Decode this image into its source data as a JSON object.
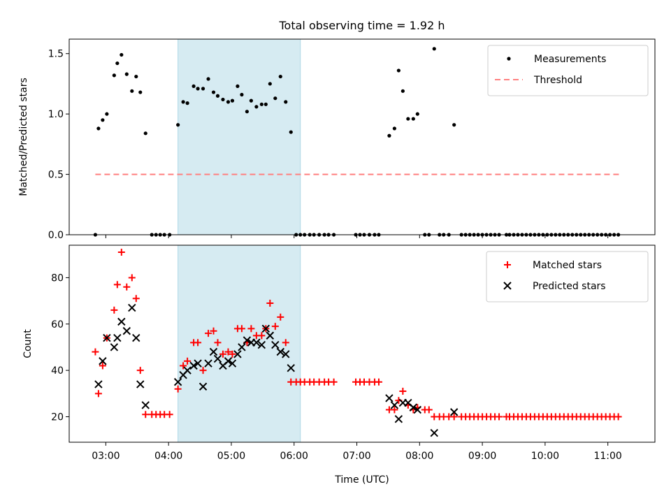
{
  "figure": {
    "title": "Total observing time = 1.92 h"
  },
  "colors": {
    "measurement": "#000000",
    "threshold": "#ff7f7f",
    "matched": "#ff0000",
    "predicted": "#000000",
    "highlight": "#add8e6"
  },
  "chart_data": [
    {
      "type": "scatter",
      "ylabel": "Matched/Predicted stars",
      "xlabel": "",
      "xlim": [
        "02:25",
        "11:45"
      ],
      "ylim": [
        0,
        1.62
      ],
      "yticks": [
        "0.0",
        "0.5",
        "1.0",
        "1.5"
      ],
      "xticks": [
        "03:00",
        "04:00",
        "05:00",
        "06:00",
        "07:00",
        "08:00",
        "09:00",
        "10:00",
        "11:00"
      ],
      "show_x_tick_labels": false,
      "legend_position": "upper right",
      "highlight_span": [
        "04:09",
        "06:06"
      ],
      "threshold": {
        "name": "Threshold",
        "value": 0.5,
        "x": [
          "02:50",
          "11:12"
        ]
      },
      "series": [
        {
          "name": "Measurements",
          "marker": "dot",
          "points": [
            [
              "02:50",
              0
            ],
            [
              "02:53",
              0.88
            ],
            [
              "02:57",
              0.95
            ],
            [
              "03:01",
              1.0
            ],
            [
              "03:08",
              1.32
            ],
            [
              "03:11",
              1.42
            ],
            [
              "03:15",
              1.49
            ],
            [
              "03:20",
              1.33
            ],
            [
              "03:25",
              1.19
            ],
            [
              "03:29",
              1.31
            ],
            [
              "03:33",
              1.18
            ],
            [
              "03:38",
              0.84
            ],
            [
              "03:44",
              0
            ],
            [
              "03:48",
              0
            ],
            [
              "03:52",
              0
            ],
            [
              "03:56",
              0
            ],
            [
              "04:01",
              0
            ],
            [
              "04:09",
              0.91
            ],
            [
              "04:14",
              1.1
            ],
            [
              "04:18",
              1.09
            ],
            [
              "04:24",
              1.23
            ],
            [
              "04:28",
              1.21
            ],
            [
              "04:33",
              1.21
            ],
            [
              "04:38",
              1.29
            ],
            [
              "04:43",
              1.18
            ],
            [
              "04:47",
              1.15
            ],
            [
              "04:52",
              1.12
            ],
            [
              "04:57",
              1.1
            ],
            [
              "05:01",
              1.11
            ],
            [
              "05:06",
              1.23
            ],
            [
              "05:10",
              1.16
            ],
            [
              "05:15",
              1.02
            ],
            [
              "05:19",
              1.11
            ],
            [
              "05:24",
              1.06
            ],
            [
              "05:29",
              1.08
            ],
            [
              "05:33",
              1.08
            ],
            [
              "05:37",
              1.25
            ],
            [
              "05:42",
              1.13
            ],
            [
              "05:47",
              1.31
            ],
            [
              "05:52",
              1.1
            ],
            [
              "05:57",
              0.85
            ],
            [
              "06:02",
              0
            ],
            [
              "06:06",
              0
            ],
            [
              "06:10",
              0
            ],
            [
              "06:15",
              0
            ],
            [
              "06:19",
              0
            ],
            [
              "06:24",
              0
            ],
            [
              "06:29",
              0
            ],
            [
              "06:33",
              0
            ],
            [
              "06:38",
              0
            ],
            [
              "06:59",
              0
            ],
            [
              "07:03",
              0
            ],
            [
              "07:07",
              0
            ],
            [
              "07:12",
              0
            ],
            [
              "07:17",
              0
            ],
            [
              "07:21",
              0
            ],
            [
              "07:31",
              0.82
            ],
            [
              "07:36",
              0.88
            ],
            [
              "07:40",
              1.36
            ],
            [
              "07:44",
              1.19
            ],
            [
              "07:49",
              0.96
            ],
            [
              "07:54",
              0.96
            ],
            [
              "07:58",
              1.0
            ],
            [
              "08:05",
              0
            ],
            [
              "08:09",
              0
            ],
            [
              "08:14",
              1.54
            ],
            [
              "08:19",
              0
            ],
            [
              "08:23",
              0
            ],
            [
              "08:28",
              0
            ],
            [
              "08:33",
              0.91
            ],
            [
              "08:40",
              0
            ],
            [
              "08:44",
              0
            ],
            [
              "08:48",
              0
            ],
            [
              "08:52",
              0
            ],
            [
              "08:56",
              0
            ],
            [
              "09:00",
              0
            ],
            [
              "09:04",
              0
            ],
            [
              "09:08",
              0
            ],
            [
              "09:12",
              0
            ],
            [
              "09:16",
              0
            ],
            [
              "09:23",
              0
            ],
            [
              "09:26",
              0
            ],
            [
              "09:30",
              0
            ],
            [
              "09:34",
              0
            ],
            [
              "09:38",
              0
            ],
            [
              "09:42",
              0
            ],
            [
              "09:46",
              0
            ],
            [
              "09:50",
              0
            ],
            [
              "09:54",
              0
            ],
            [
              "09:58",
              0
            ],
            [
              "10:02",
              0
            ],
            [
              "10:06",
              0
            ],
            [
              "10:10",
              0
            ],
            [
              "10:14",
              0
            ],
            [
              "10:18",
              0
            ],
            [
              "10:22",
              0
            ],
            [
              "10:26",
              0
            ],
            [
              "10:30",
              0
            ],
            [
              "10:34",
              0
            ],
            [
              "10:38",
              0
            ],
            [
              "10:42",
              0
            ],
            [
              "10:46",
              0
            ],
            [
              "10:50",
              0
            ],
            [
              "10:54",
              0
            ],
            [
              "10:58",
              0
            ],
            [
              "11:02",
              0
            ],
            [
              "11:06",
              0
            ],
            [
              "11:10",
              0
            ]
          ]
        }
      ]
    },
    {
      "type": "scatter",
      "ylabel": "Count",
      "xlabel": "Time (UTC)",
      "xlim": [
        "02:25",
        "11:45"
      ],
      "ylim": [
        9,
        94
      ],
      "yticks": [
        "20",
        "40",
        "60",
        "80"
      ],
      "xticks": [
        "03:00",
        "04:00",
        "05:00",
        "06:00",
        "07:00",
        "08:00",
        "09:00",
        "10:00",
        "11:00"
      ],
      "show_x_tick_labels": true,
      "legend_position": "upper right",
      "highlight_span": [
        "04:09",
        "06:06"
      ],
      "series": [
        {
          "name": "Matched stars",
          "marker": "plus",
          "points": [
            [
              "02:50",
              48
            ],
            [
              "02:53",
              30
            ],
            [
              "02:57",
              42
            ],
            [
              "03:01",
              54
            ],
            [
              "03:08",
              66
            ],
            [
              "03:11",
              77
            ],
            [
              "03:15",
              91
            ],
            [
              "03:20",
              76
            ],
            [
              "03:25",
              80
            ],
            [
              "03:29",
              71
            ],
            [
              "03:33",
              40
            ],
            [
              "03:38",
              21
            ],
            [
              "03:44",
              21
            ],
            [
              "03:48",
              21
            ],
            [
              "03:52",
              21
            ],
            [
              "03:56",
              21
            ],
            [
              "04:01",
              21
            ],
            [
              "04:09",
              32
            ],
            [
              "04:14",
              42
            ],
            [
              "04:18",
              44
            ],
            [
              "04:24",
              52
            ],
            [
              "04:28",
              52
            ],
            [
              "04:33",
              40
            ],
            [
              "04:38",
              56
            ],
            [
              "04:43",
              57
            ],
            [
              "04:47",
              52
            ],
            [
              "04:52",
              47
            ],
            [
              "04:57",
              48
            ],
            [
              "05:01",
              47
            ],
            [
              "05:06",
              58
            ],
            [
              "05:10",
              58
            ],
            [
              "05:15",
              52
            ],
            [
              "05:19",
              58
            ],
            [
              "05:24",
              55
            ],
            [
              "05:29",
              55
            ],
            [
              "05:33",
              58
            ],
            [
              "05:37",
              69
            ],
            [
              "05:42",
              59
            ],
            [
              "05:47",
              63
            ],
            [
              "05:52",
              52
            ],
            [
              "05:57",
              35
            ],
            [
              "06:02",
              35
            ],
            [
              "06:06",
              35
            ],
            [
              "06:10",
              35
            ],
            [
              "06:15",
              35
            ],
            [
              "06:19",
              35
            ],
            [
              "06:24",
              35
            ],
            [
              "06:29",
              35
            ],
            [
              "06:33",
              35
            ],
            [
              "06:38",
              35
            ],
            [
              "06:59",
              35
            ],
            [
              "07:03",
              35
            ],
            [
              "07:07",
              35
            ],
            [
              "07:12",
              35
            ],
            [
              "07:17",
              35
            ],
            [
              "07:21",
              35
            ],
            [
              "07:31",
              23
            ],
            [
              "07:36",
              23
            ],
            [
              "07:40",
              27
            ],
            [
              "07:44",
              31
            ],
            [
              "07:49",
              25
            ],
            [
              "07:54",
              23
            ],
            [
              "07:58",
              24
            ],
            [
              "08:05",
              23
            ],
            [
              "08:09",
              23
            ],
            [
              "08:14",
              20
            ],
            [
              "08:19",
              20
            ],
            [
              "08:23",
              20
            ],
            [
              "08:28",
              20
            ],
            [
              "08:33",
              20
            ],
            [
              "08:40",
              20
            ],
            [
              "08:44",
              20
            ],
            [
              "08:48",
              20
            ],
            [
              "08:52",
              20
            ],
            [
              "08:56",
              20
            ],
            [
              "09:00",
              20
            ],
            [
              "09:04",
              20
            ],
            [
              "09:08",
              20
            ],
            [
              "09:12",
              20
            ],
            [
              "09:16",
              20
            ],
            [
              "09:23",
              20
            ],
            [
              "09:26",
              20
            ],
            [
              "09:30",
              20
            ],
            [
              "09:34",
              20
            ],
            [
              "09:38",
              20
            ],
            [
              "09:42",
              20
            ],
            [
              "09:46",
              20
            ],
            [
              "09:50",
              20
            ],
            [
              "09:54",
              20
            ],
            [
              "09:58",
              20
            ],
            [
              "10:02",
              20
            ],
            [
              "10:06",
              20
            ],
            [
              "10:10",
              20
            ],
            [
              "10:14",
              20
            ],
            [
              "10:18",
              20
            ],
            [
              "10:22",
              20
            ],
            [
              "10:26",
              20
            ],
            [
              "10:30",
              20
            ],
            [
              "10:34",
              20
            ],
            [
              "10:38",
              20
            ],
            [
              "10:42",
              20
            ],
            [
              "10:46",
              20
            ],
            [
              "10:50",
              20
            ],
            [
              "10:54",
              20
            ],
            [
              "10:58",
              20
            ],
            [
              "11:02",
              20
            ],
            [
              "11:06",
              20
            ],
            [
              "11:10",
              20
            ]
          ]
        },
        {
          "name": "Predicted stars",
          "marker": "x",
          "points": [
            [
              "02:53",
              34
            ],
            [
              "02:57",
              44
            ],
            [
              "03:01",
              54
            ],
            [
              "03:08",
              50
            ],
            [
              "03:11",
              54
            ],
            [
              "03:15",
              61
            ],
            [
              "03:20",
              57
            ],
            [
              "03:25",
              67
            ],
            [
              "03:29",
              54
            ],
            [
              "03:33",
              34
            ],
            [
              "03:38",
              25
            ],
            [
              "04:09",
              35
            ],
            [
              "04:14",
              38
            ],
            [
              "04:18",
              40
            ],
            [
              "04:24",
              42
            ],
            [
              "04:28",
              43
            ],
            [
              "04:33",
              33
            ],
            [
              "04:38",
              43
            ],
            [
              "04:43",
              48
            ],
            [
              "04:47",
              45
            ],
            [
              "04:52",
              42
            ],
            [
              "04:57",
              44
            ],
            [
              "05:01",
              43
            ],
            [
              "05:06",
              47
            ],
            [
              "05:10",
              50
            ],
            [
              "05:15",
              53
            ],
            [
              "05:19",
              52
            ],
            [
              "05:24",
              52
            ],
            [
              "05:29",
              51
            ],
            [
              "05:33",
              58
            ],
            [
              "05:37",
              55
            ],
            [
              "05:42",
              51
            ],
            [
              "05:47",
              48
            ],
            [
              "05:52",
              47
            ],
            [
              "05:57",
              41
            ],
            [
              "07:31",
              28
            ],
            [
              "07:36",
              25
            ],
            [
              "07:40",
              19
            ],
            [
              "07:44",
              26
            ],
            [
              "07:49",
              26
            ],
            [
              "07:54",
              24
            ],
            [
              "07:58",
              23
            ],
            [
              "08:14",
              13
            ],
            [
              "08:33",
              22
            ]
          ]
        }
      ]
    }
  ]
}
